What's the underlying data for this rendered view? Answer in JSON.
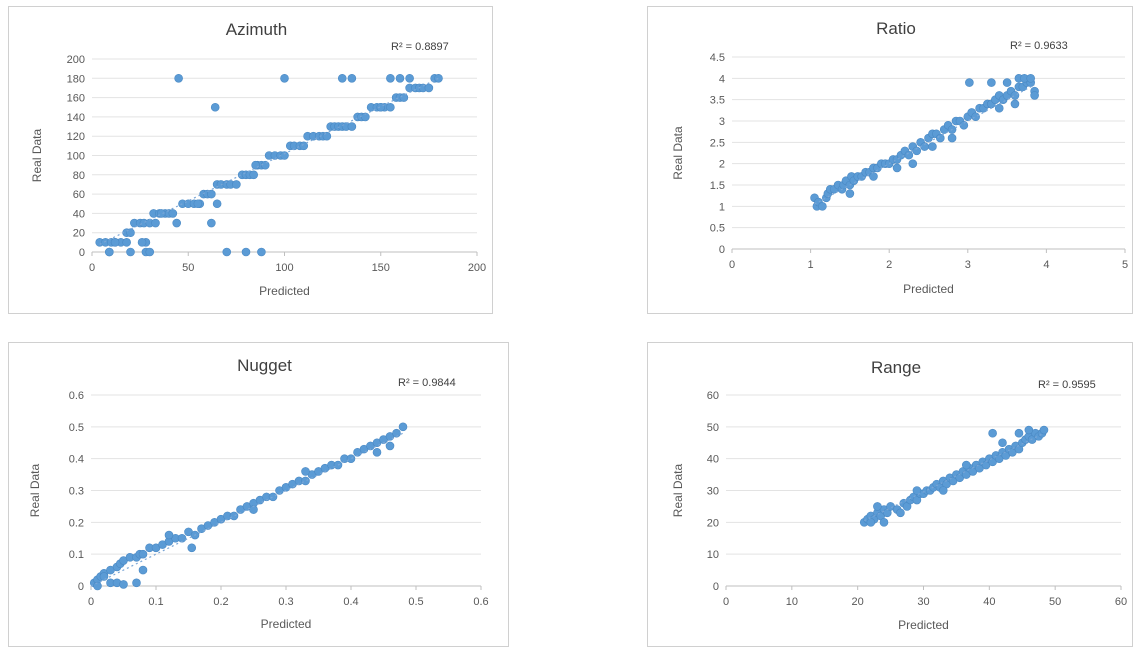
{
  "chart_data": [
    {
      "type": "scatter",
      "title": "Azimuth",
      "xlabel": "Predicted",
      "ylabel": "Real Data",
      "r2_label": "R² = 0.8897",
      "xlim": [
        0,
        200
      ],
      "ylim": [
        0,
        200
      ],
      "xticks": [
        0,
        50,
        100,
        150,
        200
      ],
      "yticks": [
        0,
        20,
        40,
        60,
        80,
        100,
        120,
        140,
        160,
        180,
        200
      ],
      "x": [
        4,
        7,
        10,
        12,
        15,
        18,
        9,
        20,
        22,
        18,
        25,
        27,
        30,
        33,
        28,
        32,
        35,
        38,
        40,
        42,
        44,
        36,
        47,
        50,
        53,
        56,
        58,
        60,
        62,
        65,
        55,
        67,
        70,
        72,
        75,
        78,
        80,
        82,
        84,
        86,
        88,
        90,
        92,
        95,
        98,
        100,
        103,
        105,
        108,
        110,
        112,
        115,
        118,
        120,
        122,
        124,
        126,
        128,
        130,
        132,
        135,
        138,
        140,
        142,
        145,
        148,
        150,
        152,
        155,
        158,
        160,
        162,
        165,
        168,
        170,
        172,
        175,
        178,
        180,
        155,
        150,
        160,
        45,
        64,
        100,
        130,
        135,
        62,
        65,
        28,
        70,
        80,
        88,
        20,
        30,
        26,
        9,
        12,
        85,
        165
      ],
      "y": [
        10,
        10,
        10,
        10,
        10,
        20,
        0,
        20,
        30,
        10,
        30,
        30,
        30,
        30,
        10,
        40,
        40,
        40,
        40,
        40,
        30,
        40,
        50,
        50,
        50,
        50,
        60,
        60,
        60,
        70,
        50,
        70,
        70,
        70,
        70,
        80,
        80,
        80,
        80,
        90,
        90,
        90,
        100,
        100,
        100,
        100,
        110,
        110,
        110,
        110,
        120,
        120,
        120,
        120,
        120,
        130,
        130,
        130,
        130,
        130,
        130,
        140,
        140,
        140,
        150,
        150,
        150,
        150,
        150,
        160,
        160,
        160,
        170,
        170,
        170,
        170,
        170,
        180,
        180,
        180,
        150,
        180,
        180,
        150,
        180,
        180,
        180,
        30,
        50,
        0,
        0,
        0,
        0,
        0,
        0,
        10,
        0,
        10,
        90,
        180
      ],
      "trend": [
        [
          4,
          8
        ],
        [
          180,
          180
        ]
      ]
    },
    {
      "type": "scatter",
      "title": "Ratio",
      "xlabel": "Predicted",
      "ylabel": "Real Data",
      "r2_label": "R² = 0.9633",
      "xlim": [
        0,
        5
      ],
      "ylim": [
        0,
        4.5
      ],
      "xticks": [
        "0",
        "1",
        "2",
        "3",
        "4",
        "5"
      ],
      "yticks": [
        "0",
        "0.5",
        "1",
        "1.5",
        "2",
        "2.5",
        "3",
        "3.5",
        "4",
        "4.5"
      ],
      "x": [
        1.05,
        1.08,
        1.1,
        1.15,
        1.2,
        1.22,
        1.25,
        1.3,
        1.35,
        1.4,
        1.42,
        1.45,
        1.5,
        1.52,
        1.55,
        1.6,
        1.65,
        1.7,
        1.75,
        1.8,
        1.85,
        1.9,
        1.95,
        2.0,
        2.05,
        2.1,
        2.15,
        2.2,
        2.25,
        2.3,
        2.35,
        2.4,
        2.45,
        2.5,
        2.55,
        2.6,
        2.65,
        2.7,
        2.75,
        2.8,
        2.85,
        2.9,
        2.95,
        3.0,
        3.05,
        3.1,
        3.15,
        3.2,
        3.25,
        3.3,
        3.35,
        3.4,
        3.45,
        3.5,
        3.55,
        3.6,
        3.65,
        3.7,
        3.75,
        3.8,
        3.85,
        3.02,
        3.3,
        3.5,
        3.65,
        3.72,
        3.8,
        3.85,
        3.6,
        3.4,
        2.3,
        2.55,
        2.8,
        1.5,
        1.8,
        2.1
      ],
      "y": [
        1.2,
        1.0,
        1.1,
        1.0,
        1.2,
        1.3,
        1.4,
        1.4,
        1.5,
        1.4,
        1.5,
        1.6,
        1.5,
        1.7,
        1.6,
        1.7,
        1.7,
        1.8,
        1.8,
        1.9,
        1.9,
        2.0,
        2.0,
        2.0,
        2.1,
        2.1,
        2.2,
        2.3,
        2.2,
        2.4,
        2.3,
        2.5,
        2.4,
        2.6,
        2.7,
        2.7,
        2.6,
        2.8,
        2.9,
        2.8,
        3.0,
        3.0,
        2.9,
        3.1,
        3.2,
        3.1,
        3.3,
        3.3,
        3.4,
        3.4,
        3.5,
        3.6,
        3.5,
        3.6,
        3.7,
        3.6,
        3.8,
        3.8,
        3.9,
        3.9,
        3.7,
        3.9,
        3.9,
        3.9,
        4.0,
        4.0,
        4.0,
        3.6,
        3.4,
        3.3,
        2.0,
        2.4,
        2.6,
        1.3,
        1.7,
        1.9
      ],
      "trend": [
        [
          1.05,
          1.05
        ],
        [
          3.85,
          3.85
        ]
      ]
    },
    {
      "type": "scatter",
      "title": "Nugget",
      "xlabel": "Predicted",
      "ylabel": "Real Data",
      "r2_label": "R² = 0.9844",
      "xlim": [
        0,
        0.6
      ],
      "ylim": [
        0,
        0.6
      ],
      "xticks": [
        "0",
        "0.1",
        "0.2",
        "0.3",
        "0.4",
        "0.5",
        "0.6"
      ],
      "yticks": [
        "0",
        "0.1",
        "0.2",
        "0.3",
        "0.4",
        "0.5",
        "0.6"
      ],
      "x": [
        0.005,
        0.01,
        0.015,
        0.02,
        0.03,
        0.04,
        0.045,
        0.05,
        0.06,
        0.07,
        0.075,
        0.08,
        0.09,
        0.1,
        0.11,
        0.12,
        0.13,
        0.14,
        0.15,
        0.16,
        0.17,
        0.18,
        0.19,
        0.2,
        0.21,
        0.22,
        0.23,
        0.24,
        0.25,
        0.26,
        0.27,
        0.28,
        0.29,
        0.3,
        0.31,
        0.32,
        0.33,
        0.34,
        0.35,
        0.36,
        0.37,
        0.38,
        0.39,
        0.4,
        0.41,
        0.42,
        0.43,
        0.44,
        0.45,
        0.46,
        0.47,
        0.48,
        0.03,
        0.04,
        0.05,
        0.07,
        0.08,
        0.155,
        0.46,
        0.44,
        0.01,
        0.02,
        0.12,
        0.25,
        0.33
      ],
      "y": [
        0.01,
        0.02,
        0.03,
        0.04,
        0.05,
        0.06,
        0.07,
        0.08,
        0.09,
        0.09,
        0.1,
        0.1,
        0.12,
        0.12,
        0.13,
        0.14,
        0.15,
        0.15,
        0.17,
        0.16,
        0.18,
        0.19,
        0.2,
        0.21,
        0.22,
        0.22,
        0.24,
        0.25,
        0.26,
        0.27,
        0.28,
        0.28,
        0.3,
        0.31,
        0.32,
        0.33,
        0.33,
        0.35,
        0.36,
        0.37,
        0.38,
        0.38,
        0.4,
        0.4,
        0.42,
        0.43,
        0.44,
        0.45,
        0.46,
        0.47,
        0.48,
        0.5,
        0.01,
        0.01,
        0.005,
        0.01,
        0.05,
        0.12,
        0.44,
        0.42,
        0.0,
        0.03,
        0.16,
        0.24,
        0.36
      ],
      "trend": [
        [
          0.0,
          0.0
        ],
        [
          0.48,
          0.48
        ]
      ]
    },
    {
      "type": "scatter",
      "title": "Range",
      "xlabel": "Predicted",
      "ylabel": "Real Data",
      "r2_label": "R² = 0.9595",
      "xlim": [
        0,
        60
      ],
      "ylim": [
        0,
        60
      ],
      "xticks": [
        "0",
        "10",
        "20",
        "30",
        "40",
        "50",
        "60"
      ],
      "yticks": [
        "0",
        "10",
        "20",
        "30",
        "40",
        "50",
        "60"
      ],
      "x": [
        21,
        21.5,
        22,
        22.5,
        23,
        23.5,
        24,
        24.5,
        25,
        26,
        27,
        27.5,
        28,
        28.5,
        29,
        29.5,
        30,
        30.5,
        31,
        31.5,
        32,
        32.5,
        33,
        33.5,
        34,
        34.5,
        35,
        35.5,
        36,
        36.5,
        37,
        37.5,
        38,
        38.5,
        39,
        39.5,
        40,
        40.5,
        41,
        41.5,
        42,
        42.5,
        43,
        43.5,
        44,
        44.5,
        45,
        45.5,
        46,
        46.5,
        47,
        47.5,
        48,
        48.3,
        22,
        23,
        24,
        26.5,
        29,
        33,
        36.5,
        40.5,
        42,
        44.5,
        46
      ],
      "y": [
        20,
        21,
        22,
        21,
        23,
        22,
        24,
        23,
        25,
        24,
        26,
        25,
        27,
        28,
        27,
        29,
        29,
        30,
        30,
        31,
        32,
        31,
        33,
        32,
        34,
        33,
        35,
        34,
        36,
        35,
        37,
        36,
        38,
        37,
        39,
        38,
        40,
        39,
        41,
        40,
        42,
        41,
        43,
        42,
        44,
        43,
        45,
        46,
        47,
        46,
        48,
        47,
        48,
        49,
        20,
        25,
        20,
        23,
        30,
        30,
        38,
        48,
        45,
        48,
        49
      ],
      "trend": [
        [
          21,
          20.5
        ],
        [
          48.3,
          48
        ]
      ]
    }
  ]
}
